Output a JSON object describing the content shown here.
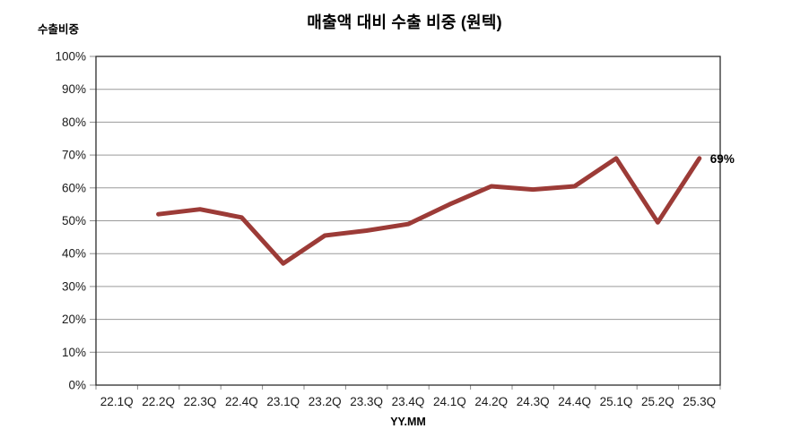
{
  "page": {
    "background": "#ffffff"
  },
  "chart_data": {
    "type": "line",
    "title": "매출액 대비 수출 비중 (원텍)",
    "y_axis_title": "수출비중",
    "x_axis_title": "YY.MM",
    "categories": [
      "22.1Q",
      "22.2Q",
      "22.3Q",
      "22.4Q",
      "23.1Q",
      "23.2Q",
      "23.3Q",
      "23.4Q",
      "24.1Q",
      "24.2Q",
      "24.3Q",
      "24.4Q",
      "25.1Q",
      "25.2Q",
      "25.3Q"
    ],
    "series": [
      {
        "name": "수출비중",
        "color": "#9C3B37",
        "values": [
          null,
          52,
          53.5,
          51,
          37,
          45.5,
          47,
          49,
          55,
          60.5,
          59.5,
          60.5,
          69,
          49.5,
          69
        ]
      }
    ],
    "ylim": [
      0,
      100
    ],
    "y_ticks": [
      {
        "value": 0,
        "label": "0%"
      },
      {
        "value": 10,
        "label": "10%"
      },
      {
        "value": 20,
        "label": "20%"
      },
      {
        "value": 30,
        "label": "30%"
      },
      {
        "value": 40,
        "label": "40%"
      },
      {
        "value": 50,
        "label": "50%"
      },
      {
        "value": 60,
        "label": "60%"
      },
      {
        "value": 70,
        "label": "70%"
      },
      {
        "value": 80,
        "label": "80%"
      },
      {
        "value": 90,
        "label": "90%"
      },
      {
        "value": 100,
        "label": "100%"
      }
    ],
    "grid": "horizontal",
    "legend": "none",
    "gridline_color": "#9a9a9a",
    "axis_color": "#2b2b2b",
    "tick_color": "#8c8c8c",
    "annotation": {
      "text": "69%",
      "category": "25.3Q",
      "value": 69
    }
  }
}
